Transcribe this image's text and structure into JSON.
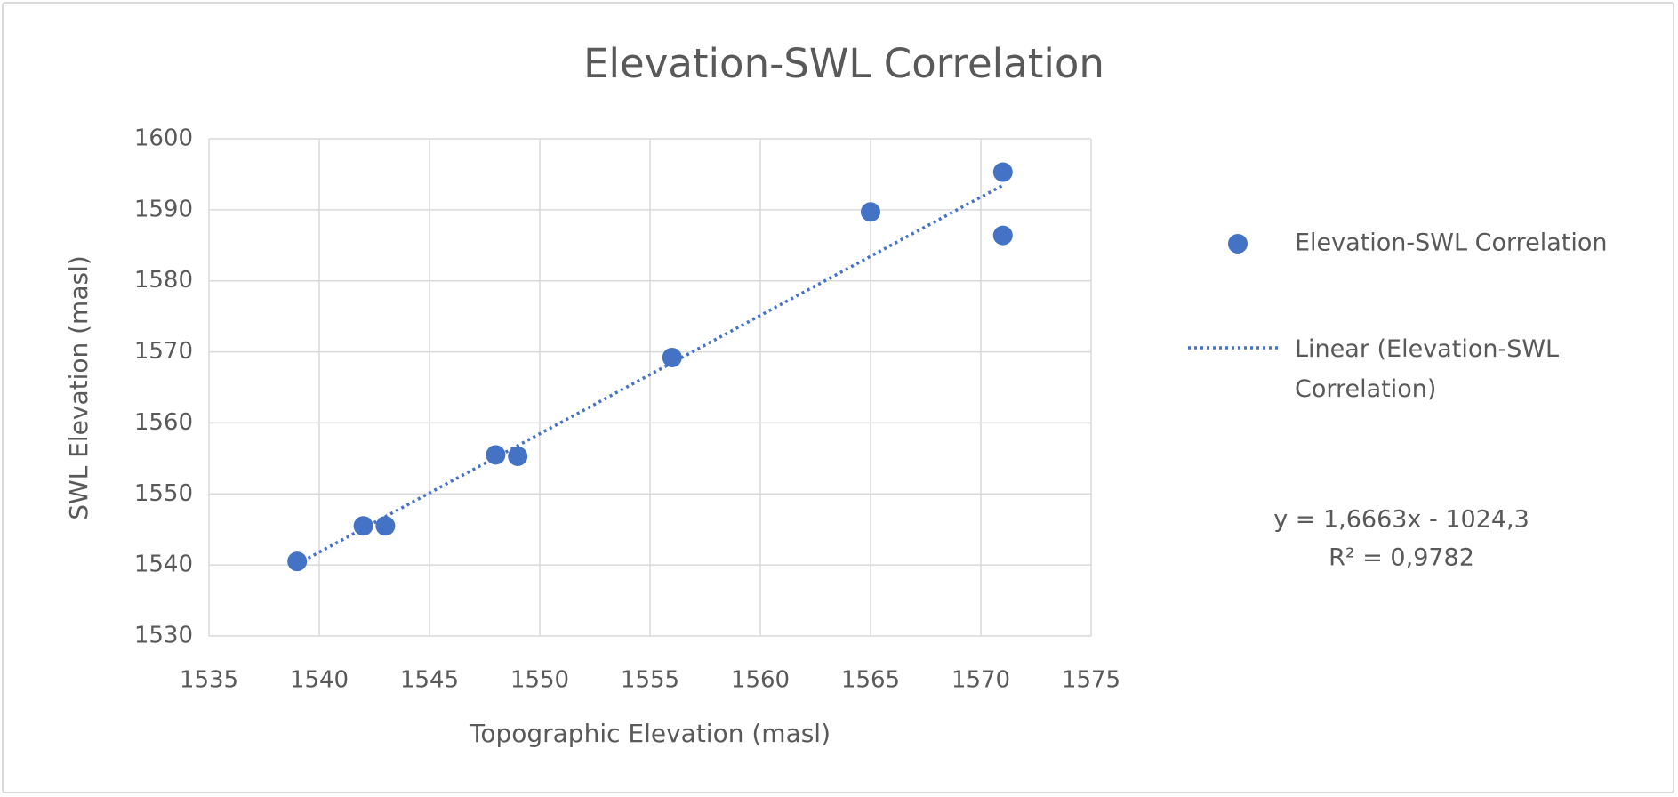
{
  "chart_data": {
    "type": "scatter",
    "title": "Elevation-SWL Correlation",
    "x_label": "Topographic Elevation (masl)",
    "y_label": "SWL Elevation (masl)",
    "series": [
      {
        "name": "Elevation-SWL Correlation",
        "color": "#4472c4",
        "x": [
          1539,
          1542,
          1543,
          1548,
          1549,
          1556,
          1565,
          1571,
          1571
        ],
        "values": [
          1540.5,
          1545.5,
          1545.5,
          1555.5,
          1555.3,
          1569.2,
          1589.7,
          1595.3,
          1586.4
        ]
      }
    ],
    "trendline": {
      "name": "Linear (Elevation-SWL Correlation)",
      "slope": 1.6663,
      "intercept": -1024.3,
      "r2": 0.9782,
      "equation_label": "y = 1,6663x - 1024,3",
      "r2_label": "R² = 0,9782"
    },
    "xlim": [
      1535,
      1575
    ],
    "xticks": [
      1535,
      1540,
      1545,
      1550,
      1555,
      1560,
      1565,
      1570,
      1575
    ],
    "ylim": [
      1530,
      1600
    ],
    "yticks": [
      1530,
      1540,
      1550,
      1560,
      1570,
      1580,
      1590,
      1600
    ],
    "grid": true,
    "legend": "right"
  }
}
